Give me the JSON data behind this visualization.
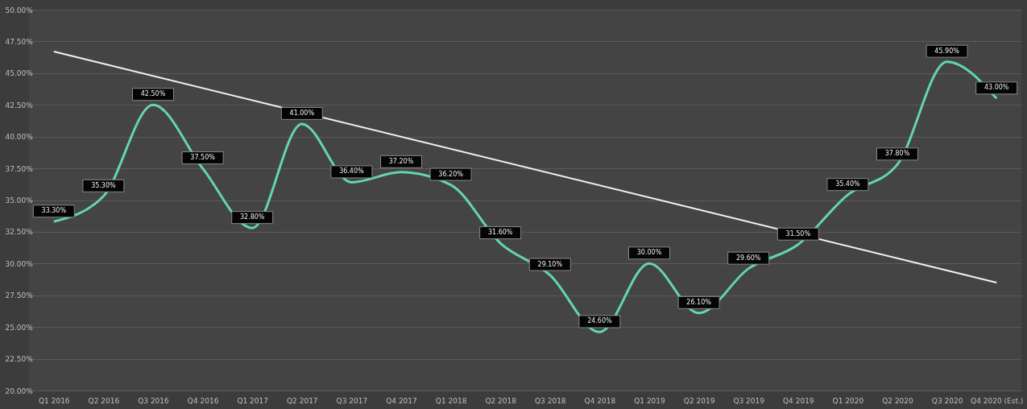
{
  "chart_data": {
    "type": "line",
    "categories": [
      "Q1 2016",
      "Q2 2016",
      "Q3 2016",
      "Q4 2016",
      "Q1 2017",
      "Q2 2017",
      "Q3 2017",
      "Q4 2017",
      "Q1 2018",
      "Q2 2018",
      "Q3 2018",
      "Q4 2018",
      "Q1 2019",
      "Q2 2019",
      "Q3 2019",
      "Q4 2019",
      "Q1 2020",
      "Q2 2020",
      "Q3 2020",
      "Q4 2020 (Est.)"
    ],
    "series": [
      {
        "color": "#63d6ab",
        "values": [
          33.3,
          35.3,
          42.5,
          37.5,
          32.8,
          41.0,
          36.4,
          37.2,
          36.2,
          31.6,
          29.1,
          24.6,
          30.0,
          26.1,
          29.6,
          31.5,
          35.4,
          37.8,
          45.9,
          43.0
        ],
        "value_labels": [
          "33.30%",
          "35.30%",
          "42.50%",
          "37.50%",
          "32.80%",
          "41.00%",
          "36.40%",
          "37.20%",
          "36.20%",
          "31.60%",
          "29.10%",
          "24.60%",
          "30.00%",
          "26.10%",
          "29.60%",
          "31.50%",
          "35.40%",
          "37.80%",
          "45.90%",
          "43.00%"
        ]
      },
      {
        "type": "line",
        "color": "#f2f2f2",
        "x": [
          "Q1 2016",
          "Q4 2020 (Est.)"
        ],
        "values": [
          46.7,
          28.5
        ]
      }
    ],
    "ylim": [
      20,
      50
    ],
    "yticks": [
      {
        "value": 20,
        "label": "20.00%"
      },
      {
        "value": 22.5,
        "label": "22.50%"
      },
      {
        "value": 25,
        "label": "25.00%"
      },
      {
        "value": 27.5,
        "label": "27.50%"
      },
      {
        "value": 30,
        "label": "30.00%"
      },
      {
        "value": 32.5,
        "label": "32.50%"
      },
      {
        "value": 35,
        "label": "35.00%"
      },
      {
        "value": 37.5,
        "label": "37.50%"
      },
      {
        "value": 40,
        "label": "40.00%"
      },
      {
        "value": 42.5,
        "label": "42.50%"
      },
      {
        "value": 45,
        "label": "45.00%"
      },
      {
        "value": 47.5,
        "label": "47.50%"
      },
      {
        "value": 50,
        "label": "50.00%"
      }
    ],
    "grid": "y",
    "legend": false,
    "marker": "none",
    "line_style": "solid"
  }
}
